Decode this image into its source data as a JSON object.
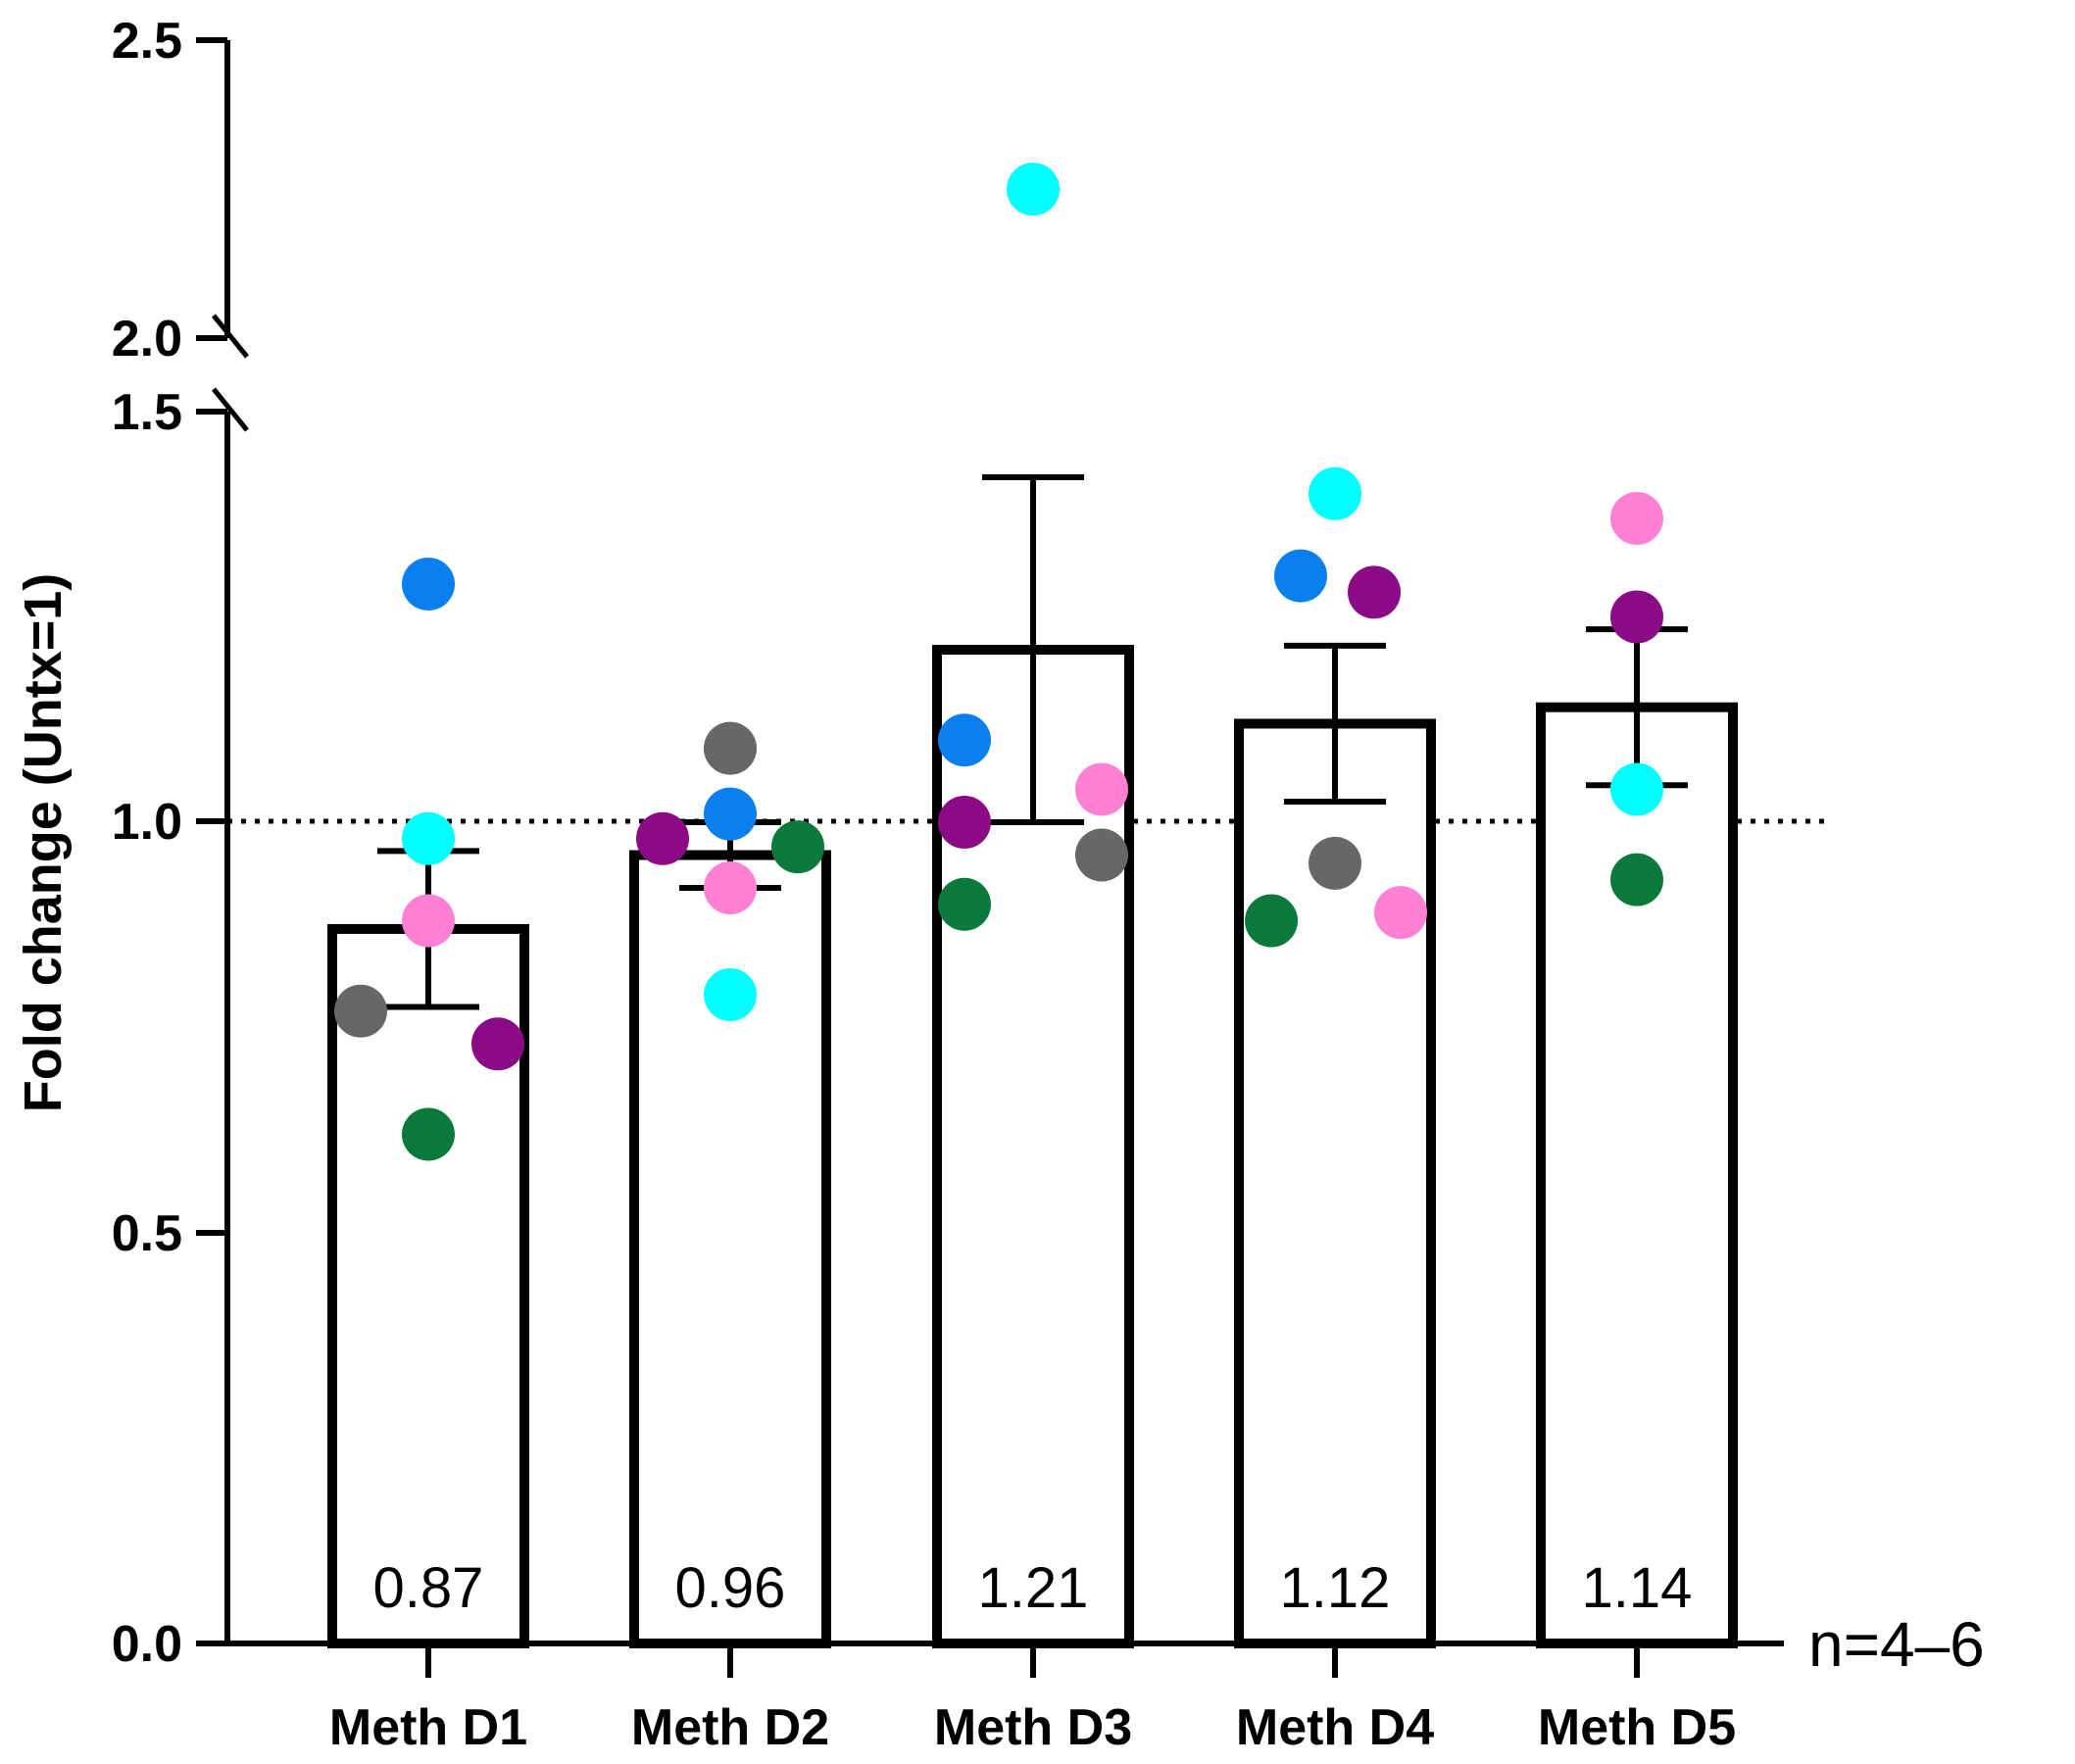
{
  "chart_data": {
    "type": "bar",
    "title": "",
    "xlabel": "",
    "ylabel": "Fold change (Untx=1)",
    "ylim": [
      0,
      2.5
    ],
    "axis_break": [
      1.5,
      2.0
    ],
    "yticks": [
      "0.0",
      "0.5",
      "1.0",
      "1.5",
      "2.0",
      "2.5"
    ],
    "reference_line": 1.0,
    "annotation": "n=4–6",
    "categories": [
      "Meth D1",
      "Meth D2",
      "Meth D3",
      "Meth D4",
      "Meth D5"
    ],
    "means": [
      0.87,
      0.96,
      1.21,
      1.12,
      1.14
    ],
    "mean_labels": [
      "0.87",
      "0.96",
      "1.21",
      "1.12",
      "1.14"
    ],
    "sem": [
      0.095,
      0.04,
      0.21,
      0.095,
      0.095
    ],
    "point_colors": {
      "blue": "#0A7FF0",
      "cyan": "#00FFFF",
      "pink": "#FF80D5",
      "gray": "#676767",
      "purple": "#8B0A86",
      "green": "#0A7A3C"
    },
    "points": [
      [
        {
          "color": "blue",
          "value": 1.29
        },
        {
          "color": "cyan",
          "value": 0.98
        },
        {
          "color": "pink",
          "value": 0.88
        },
        {
          "color": "gray",
          "value": 0.77
        },
        {
          "color": "purple",
          "value": 0.73
        },
        {
          "color": "green",
          "value": 0.62
        }
      ],
      [
        {
          "color": "gray",
          "value": 1.09
        },
        {
          "color": "blue",
          "value": 1.01
        },
        {
          "color": "purple",
          "value": 0.98
        },
        {
          "color": "green",
          "value": 0.97
        },
        {
          "color": "pink",
          "value": 0.92
        },
        {
          "color": "cyan",
          "value": 0.79
        }
      ],
      [
        {
          "color": "cyan",
          "value": 2.25
        },
        {
          "color": "blue",
          "value": 1.1
        },
        {
          "color": "pink",
          "value": 1.04
        },
        {
          "color": "purple",
          "value": 1.0
        },
        {
          "color": "gray",
          "value": 0.96
        },
        {
          "color": "green",
          "value": 0.9
        }
      ],
      [
        {
          "color": "cyan",
          "value": 1.4
        },
        {
          "color": "blue",
          "value": 1.3
        },
        {
          "color": "purple",
          "value": 1.28
        },
        {
          "color": "gray",
          "value": 0.95
        },
        {
          "color": "pink",
          "value": 0.89
        },
        {
          "color": "green",
          "value": 0.88
        }
      ],
      [
        {
          "color": "pink",
          "value": 1.37
        },
        {
          "color": "purple",
          "value": 1.25
        },
        {
          "color": "cyan",
          "value": 1.04
        },
        {
          "color": "green",
          "value": 0.93
        }
      ]
    ]
  }
}
